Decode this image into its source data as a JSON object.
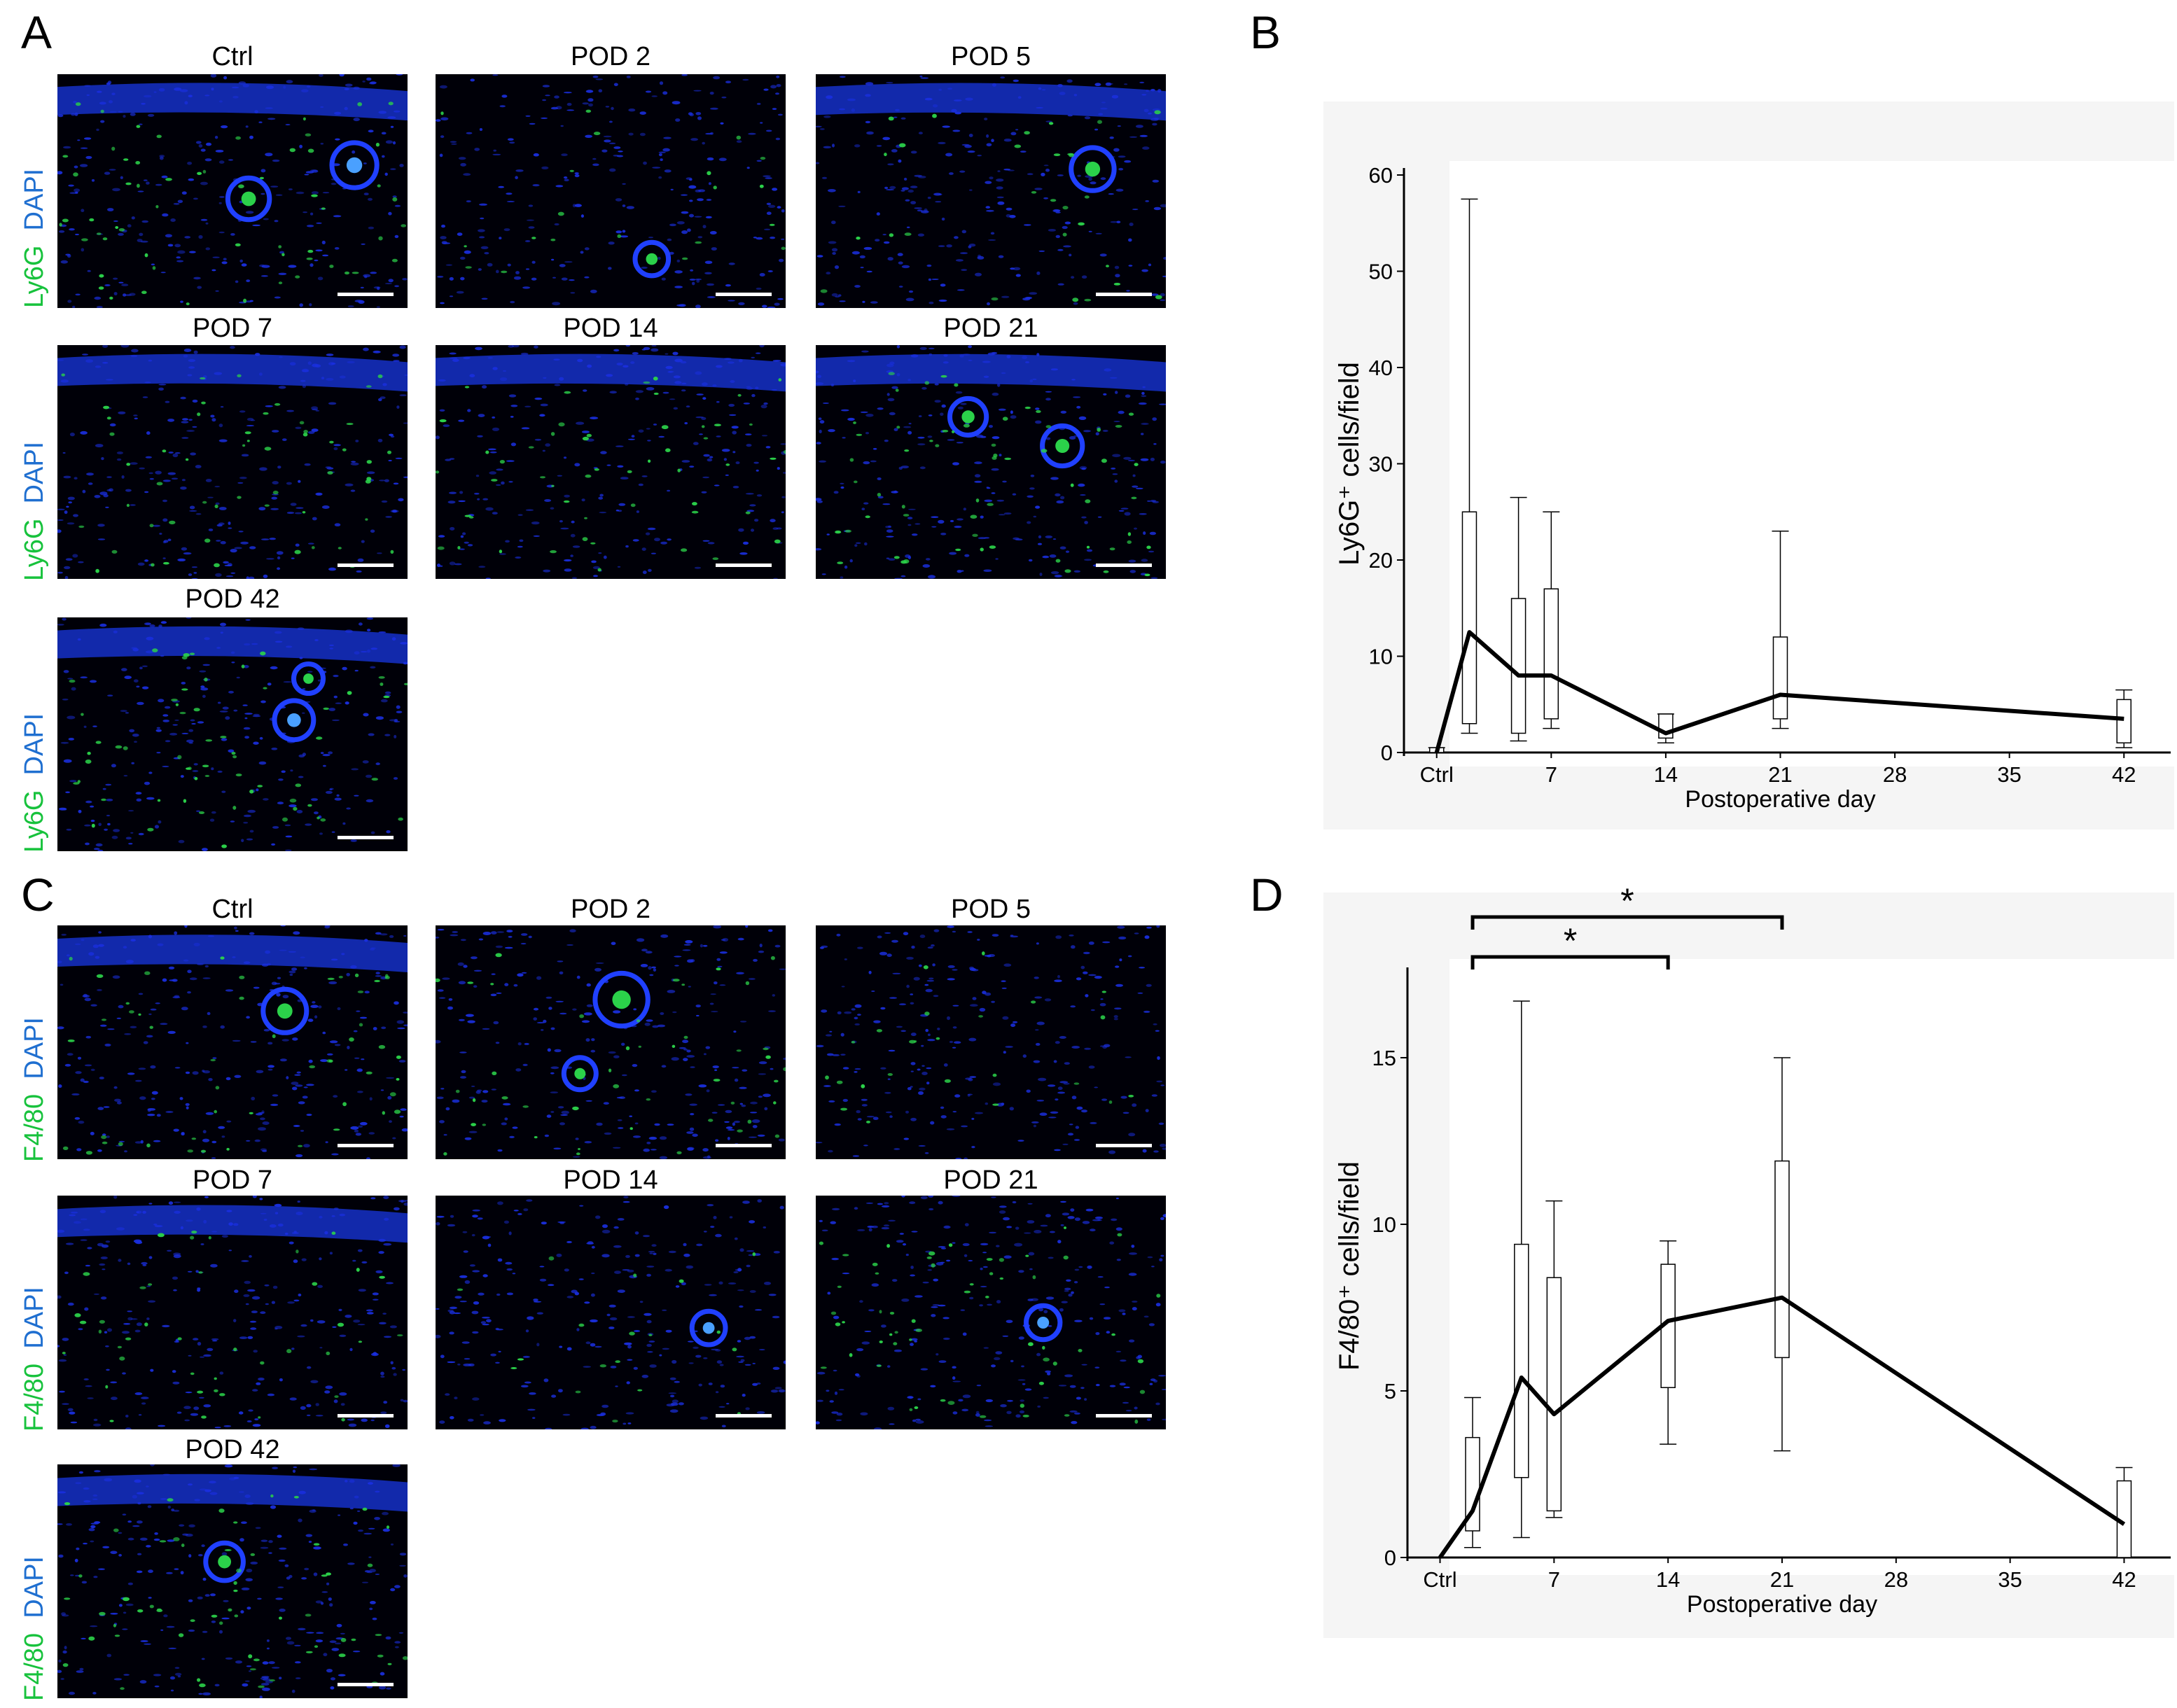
{
  "panels": {
    "a": "A",
    "b": "B",
    "c": "C",
    "d": "D"
  },
  "micrograph_titles": [
    "Ctrl",
    "POD 2",
    "POD 5",
    "POD 7",
    "POD 14",
    "POD 21",
    "POD 42"
  ],
  "stain_labels": {
    "ly6g_marker": "Ly6G",
    "f480_marker": "F4/80",
    "nuclear": "DAPI"
  },
  "colors": {
    "nuclei": "#1a2fe0",
    "marker": "#2bd14a",
    "background": "#000008",
    "chart_bg": "#f5f5f5",
    "line": "#000000"
  },
  "chart_data": [
    {
      "panel": "B",
      "type": "box",
      "xlabel": "Postoperative day",
      "ylabel": "Ly6G⁺ cells/field",
      "ylim": [
        0,
        60
      ],
      "yticks": [
        0,
        10,
        20,
        30,
        40,
        50,
        60
      ],
      "xticks": [
        {
          "value": 0,
          "label": "Ctrl"
        },
        {
          "value": 7,
          "label": "7"
        },
        {
          "value": 14,
          "label": "14"
        },
        {
          "value": 21,
          "label": "21"
        },
        {
          "value": 28,
          "label": "28"
        },
        {
          "value": 35,
          "label": "35"
        },
        {
          "value": 42,
          "label": "42"
        }
      ],
      "boxes": [
        {
          "day": 0,
          "min": 0,
          "q1": 0,
          "q3": 0.5,
          "max": 0.5
        },
        {
          "day": 2,
          "min": 2,
          "q1": 3,
          "q3": 25,
          "max": 57.5
        },
        {
          "day": 5,
          "min": 1.2,
          "q1": 2,
          "q3": 16,
          "max": 26.5
        },
        {
          "day": 7,
          "min": 2.5,
          "q1": 3.5,
          "q3": 17,
          "max": 25
        },
        {
          "day": 14,
          "min": 1,
          "q1": 1.5,
          "q3": 4,
          "max": 4
        },
        {
          "day": 21,
          "min": 2.5,
          "q1": 3.5,
          "q3": 12,
          "max": 23
        },
        {
          "day": 42,
          "min": 0.5,
          "q1": 1,
          "q3": 5.5,
          "max": 6.5
        }
      ],
      "mean_line": [
        {
          "day": 0,
          "value": 0
        },
        {
          "day": 2,
          "value": 12.5
        },
        {
          "day": 5,
          "value": 8
        },
        {
          "day": 7,
          "value": 8
        },
        {
          "day": 14,
          "value": 2
        },
        {
          "day": 21,
          "value": 6
        },
        {
          "day": 42,
          "value": 3.5
        }
      ]
    },
    {
      "panel": "D",
      "type": "box",
      "xlabel": "Postoperative day",
      "ylabel": "F4/80⁺ cells/field",
      "ylim": [
        0,
        17.5
      ],
      "yticks": [
        0,
        5,
        10,
        15
      ],
      "xticks": [
        {
          "value": 0,
          "label": "Ctrl"
        },
        {
          "value": 7,
          "label": "7"
        },
        {
          "value": 14,
          "label": "14"
        },
        {
          "value": 21,
          "label": "21"
        },
        {
          "value": 28,
          "label": "28"
        },
        {
          "value": 35,
          "label": "35"
        },
        {
          "value": 42,
          "label": "42"
        }
      ],
      "boxes": [
        {
          "day": 2,
          "min": 0.3,
          "q1": 0.8,
          "q3": 3.6,
          "max": 4.8
        },
        {
          "day": 5,
          "min": 0.6,
          "q1": 2.4,
          "q3": 9.4,
          "max": 16.7
        },
        {
          "day": 7,
          "min": 1.2,
          "q1": 1.4,
          "q3": 8.4,
          "max": 10.7
        },
        {
          "day": 14,
          "min": 3.4,
          "q1": 5.1,
          "q3": 8.8,
          "max": 9.5
        },
        {
          "day": 21,
          "min": 3.2,
          "q1": 6,
          "q3": 11.9,
          "max": 15
        },
        {
          "day": 42,
          "min": 0,
          "q1": 0,
          "q3": 2.3,
          "max": 2.7
        }
      ],
      "mean_line": [
        {
          "day": 0,
          "value": 0
        },
        {
          "day": 2,
          "value": 1.4
        },
        {
          "day": 5,
          "value": 5.4
        },
        {
          "day": 7,
          "value": 4.3
        },
        {
          "day": 14,
          "value": 7.1
        },
        {
          "day": 21,
          "value": 7.8
        },
        {
          "day": 42,
          "value": 1
        }
      ],
      "significance": [
        {
          "from": 2,
          "to": 14,
          "label": "*"
        },
        {
          "from": 2,
          "to": 21,
          "label": "*"
        }
      ]
    }
  ]
}
